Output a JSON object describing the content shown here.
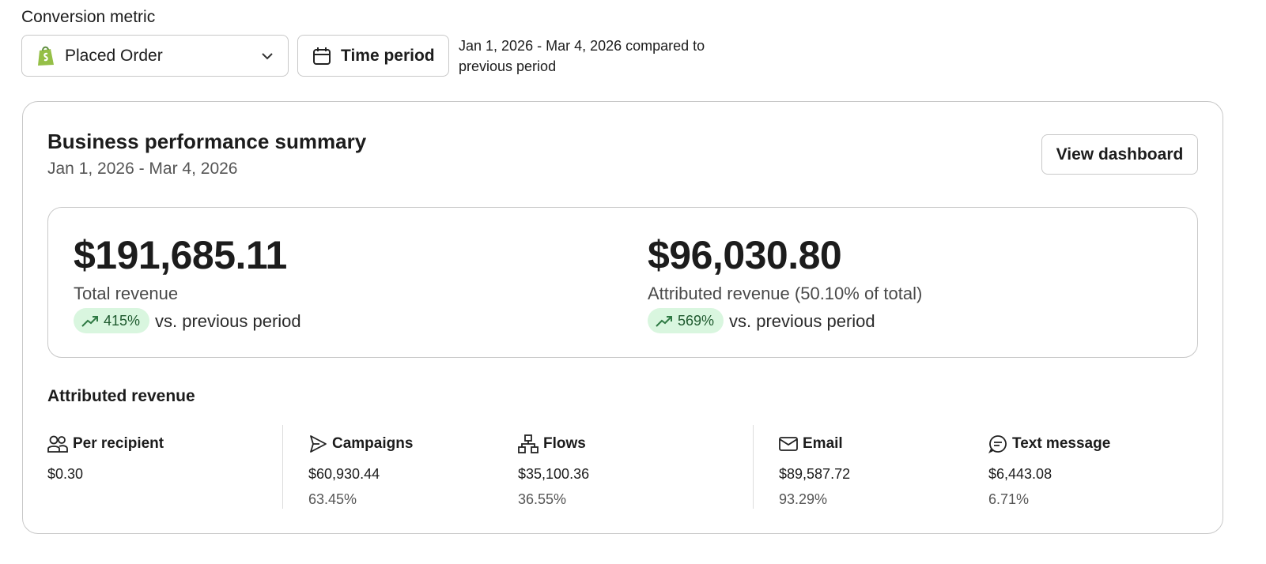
{
  "filters": {
    "label": "Conversion metric",
    "metric": "Placed Order",
    "time_button": "Time period",
    "period_note": "Jan 1, 2026 - Mar 4, 2026 compared to previous period"
  },
  "summary": {
    "title": "Business performance summary",
    "date_range": "Jan 1, 2026 - Mar 4, 2026",
    "button": "View dashboard",
    "kpis": [
      {
        "value": "$191,685.11",
        "label": "Total revenue",
        "change": "415%",
        "change_note": "vs. previous period"
      },
      {
        "value": "$96,030.80",
        "label": "Attributed revenue (50.10% of total)",
        "change": "569%",
        "change_note": "vs. previous period"
      }
    ]
  },
  "attributed": {
    "title": "Attributed revenue",
    "metrics": [
      {
        "label": "Per recipient",
        "value": "$0.30"
      },
      {
        "label": "Campaigns",
        "value": "$60,930.44",
        "share": "63.45%"
      },
      {
        "label": "Flows",
        "value": "$35,100.36",
        "share": "36.55%"
      },
      {
        "label": "Email",
        "value": "$89,587.72",
        "share": "93.29%"
      },
      {
        "label": "Text message",
        "value": "$6,443.08",
        "share": "6.71%"
      }
    ]
  }
}
